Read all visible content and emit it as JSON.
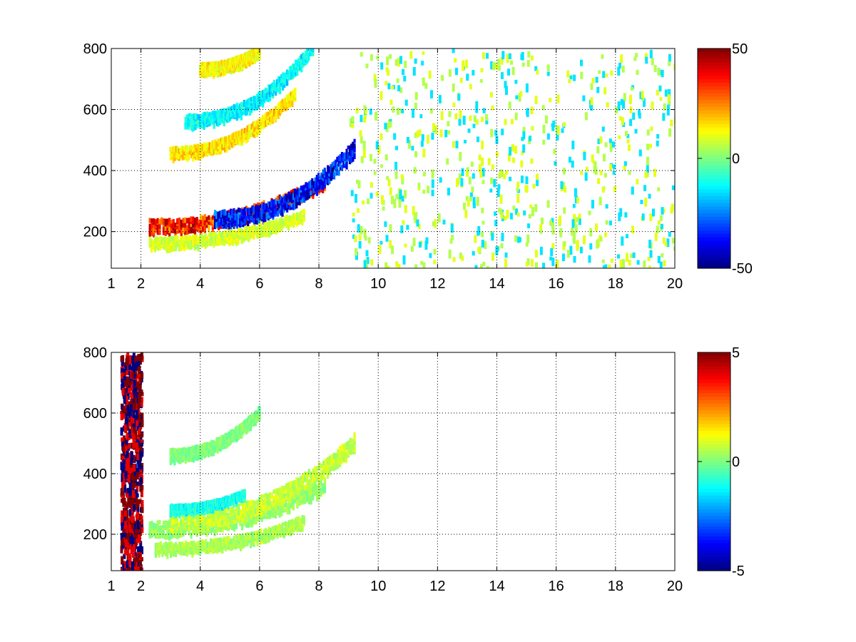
{
  "chart_data": [
    {
      "type": "heatmap",
      "title": "",
      "xlabel": "",
      "ylabel": "",
      "x_ticks": [
        1,
        2,
        4,
        6,
        8,
        10,
        12,
        14,
        16,
        18,
        20
      ],
      "x_tick_labels": [
        "1",
        "2",
        "4",
        "6",
        "8",
        "10",
        "12",
        "14",
        "16",
        "18",
        "20"
      ],
      "y_ticks": [
        200,
        400,
        600,
        800
      ],
      "y_tick_labels": [
        "200",
        "400",
        "600",
        "800"
      ],
      "xlim": [
        1,
        20
      ],
      "ylim": [
        80,
        800
      ],
      "grid": true,
      "colormap": "jet",
      "clim": [
        -50,
        50
      ],
      "colorbar_ticks": [
        50,
        0,
        -50
      ],
      "colorbar_tick_labels": [
        "50",
        "0",
        "-50"
      ],
      "features": [
        {
          "kind": "band",
          "x_start": 2.3,
          "x_end": 8.2,
          "y_start": 215,
          "y_end": 360,
          "value": 40,
          "width": 45
        },
        {
          "kind": "band",
          "x_start": 4.5,
          "x_end": 9.2,
          "y_start": 240,
          "y_end": 470,
          "value": -42,
          "width": 50
        },
        {
          "kind": "band",
          "x_start": 2.3,
          "x_end": 7.5,
          "y_start": 160,
          "y_end": 250,
          "value": 10,
          "width": 35
        },
        {
          "kind": "band",
          "x_start": 3.0,
          "x_end": 7.2,
          "y_start": 455,
          "y_end": 650,
          "value": 18,
          "width": 35
        },
        {
          "kind": "band",
          "x_start": 3.5,
          "x_end": 7.8,
          "y_start": 560,
          "y_end": 800,
          "value": -15,
          "width": 40
        },
        {
          "kind": "band",
          "x_start": 4.0,
          "x_end": 6.0,
          "y_start": 730,
          "y_end": 790,
          "value": 15,
          "width": 35
        }
      ],
      "scatter_noise": {
        "x_range": [
          9,
          20
        ],
        "values": [
          -15,
          5,
          10
        ]
      }
    },
    {
      "type": "heatmap",
      "title": "",
      "xlabel": "",
      "ylabel": "",
      "x_ticks": [
        1,
        2,
        4,
        6,
        8,
        10,
        12,
        14,
        16,
        18,
        20
      ],
      "x_tick_labels": [
        "1",
        "2",
        "4",
        "6",
        "8",
        "10",
        "12",
        "14",
        "16",
        "18",
        "20"
      ],
      "y_ticks": [
        200,
        400,
        600,
        800
      ],
      "y_tick_labels": [
        "200",
        "400",
        "600",
        "800"
      ],
      "xlim": [
        1,
        20
      ],
      "ylim": [
        80,
        800
      ],
      "grid": true,
      "colormap": "jet",
      "clim": [
        -5,
        5
      ],
      "colorbar_ticks": [
        5,
        0,
        -5
      ],
      "colorbar_tick_labels": [
        "5",
        "0",
        "-5"
      ],
      "features": [
        {
          "kind": "band",
          "x_start": 2.3,
          "x_end": 8.2,
          "y_start": 215,
          "y_end": 360,
          "value": 0.3,
          "width": 50
        },
        {
          "kind": "band",
          "x_start": 3.0,
          "x_end": 9.2,
          "y_start": 240,
          "y_end": 500,
          "value": 0.8,
          "width": 55
        },
        {
          "kind": "band",
          "x_start": 2.5,
          "x_end": 7.5,
          "y_start": 150,
          "y_end": 240,
          "value": 0.5,
          "width": 35
        },
        {
          "kind": "band",
          "x_start": 3.0,
          "x_end": 6.0,
          "y_start": 460,
          "y_end": 600,
          "value": 0.0,
          "width": 35
        },
        {
          "kind": "band",
          "x_start": 3.0,
          "x_end": 5.5,
          "y_start": 280,
          "y_end": 330,
          "value": -1.2,
          "width": 25
        }
      ],
      "scatter_noise": {
        "x_range": [
          1.3,
          2.0
        ],
        "values": [
          -5,
          5,
          4
        ]
      }
    }
  ]
}
